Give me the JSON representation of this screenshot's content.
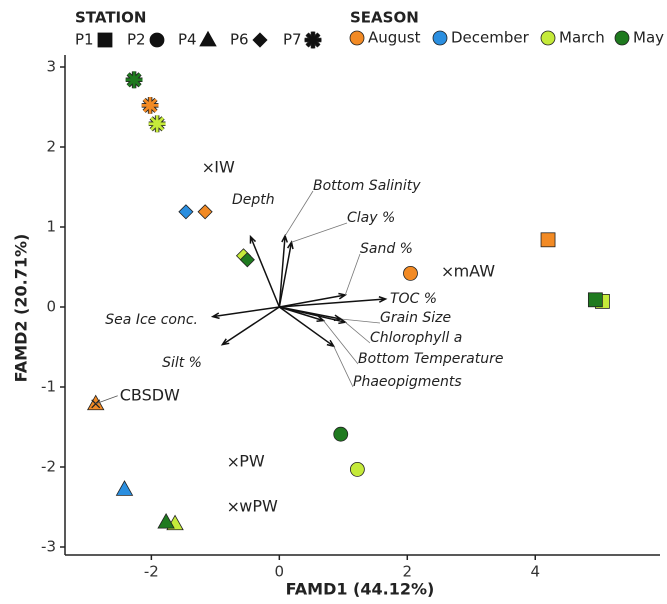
{
  "chart_data": {
    "type": "scatter",
    "x_label": "FAMD1 (44.12%)",
    "y_label": "FAMD2 (20.71%)",
    "xlim": [
      -3.35,
      5.95
    ],
    "ylim": [
      -3.1,
      3.15
    ],
    "xticks": [
      -2,
      0,
      2,
      4
    ],
    "yticks": [
      -3,
      -2,
      -1,
      0,
      1,
      2,
      3
    ],
    "stations": {
      "title": "STATION",
      "names": [
        "P1",
        "P2",
        "P4",
        "P6",
        "P7"
      ],
      "shapes": [
        "square",
        "circle",
        "triangle",
        "diamond",
        "asterisk"
      ]
    },
    "season_title": "SEASON",
    "series": [
      {
        "name": "August",
        "color": "#f28a24",
        "station": [
          "P7",
          "P6",
          "P2",
          "P1",
          "P4"
        ],
        "x": [
          -2.02,
          -1.16,
          2.05,
          4.2,
          -2.87
        ],
        "values": [
          2.52,
          1.19,
          0.42,
          0.84,
          -1.21
        ]
      },
      {
        "name": "December",
        "color": "#2b8fe0",
        "station": [
          "P6",
          "P4"
        ],
        "x": [
          -1.46,
          -2.42
        ],
        "values": [
          1.19,
          -2.28
        ]
      },
      {
        "name": "March",
        "color": "#c5ea3a",
        "station": [
          "P7",
          "P6",
          "P2",
          "P1",
          "P4"
        ],
        "x": [
          -1.91,
          -0.56,
          1.22,
          5.05,
          -1.63
        ],
        "values": [
          2.29,
          0.64,
          -2.03,
          0.07,
          -2.71
        ]
      },
      {
        "name": "May",
        "color": "#1f7a1f",
        "station": [
          "P7",
          "P6",
          "P2",
          "P1",
          "P4"
        ],
        "x": [
          -2.27,
          -0.5,
          0.96,
          4.94,
          -1.77
        ],
        "values": [
          2.84,
          0.59,
          -1.59,
          0.09,
          -2.69
        ]
      }
    ],
    "loadings": [
      {
        "name": "Depth",
        "x": -0.45,
        "y": 0.88
      },
      {
        "name": "Bottom Salinity",
        "x": 0.09,
        "y": 0.89
      },
      {
        "name": "Clay %",
        "x": 0.19,
        "y": 0.81
      },
      {
        "name": "Sand %",
        "x": 1.03,
        "y": 0.15
      },
      {
        "name": "TOC %",
        "x": 1.66,
        "y": 0.1
      },
      {
        "name": "Grain Size",
        "x": 0.96,
        "y": -0.15
      },
      {
        "name": "Chlorophyll a",
        "x": 1.03,
        "y": -0.19
      },
      {
        "name": "Bottom Temperature",
        "x": 0.69,
        "y": -0.17
      },
      {
        "name": "Phaeopigments",
        "x": 0.85,
        "y": -0.49
      },
      {
        "name": "Sea Ice conc.",
        "x": -1.04,
        "y": -0.12
      },
      {
        "name": "Silt %",
        "x": -0.89,
        "y": -0.47
      }
    ],
    "water_masses": [
      {
        "name": "IW",
        "x": -1.11,
        "y": 1.74
      },
      {
        "name": "mAW",
        "x": 2.63,
        "y": 0.44
      },
      {
        "name": "PW",
        "x": -0.72,
        "y": -1.94
      },
      {
        "name": "wPW",
        "x": -0.72,
        "y": -2.5
      },
      {
        "name": "CBSDW",
        "x": -2.87,
        "y": -1.21
      }
    ]
  }
}
